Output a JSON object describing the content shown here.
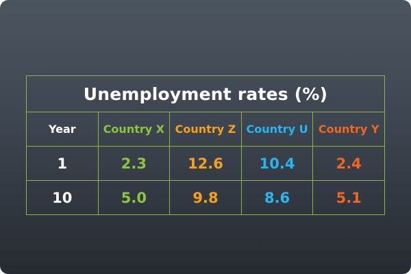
{
  "chart_data": {
    "type": "table",
    "title": "Unemployment rates (%)",
    "columns": [
      {
        "key": "year",
        "label": "Year"
      },
      {
        "key": "x",
        "label": "Country X"
      },
      {
        "key": "z",
        "label": "Country Z"
      },
      {
        "key": "u",
        "label": "Country U"
      },
      {
        "key": "y",
        "label": "Country Y"
      }
    ],
    "rows": [
      {
        "year": "1",
        "x": "2.3",
        "z": "12.6",
        "u": "10.4",
        "y": "2.4"
      },
      {
        "year": "10",
        "x": "5.0",
        "z": "9.8",
        "u": "8.6",
        "y": "5.1"
      }
    ]
  },
  "colors": {
    "background_top": "#4b5560",
    "background_bottom": "#262b32",
    "grid": "#8db63c",
    "year": "#ffffff",
    "country_x": "#8cc63f",
    "country_z": "#f7a11a",
    "country_u": "#29b6f0",
    "country_y": "#f26522"
  }
}
